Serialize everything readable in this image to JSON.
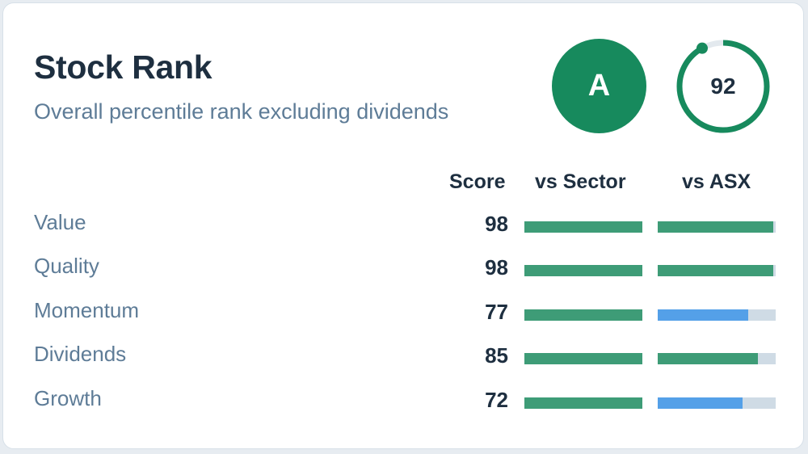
{
  "header": {
    "title": "Stock Rank",
    "subtitle": "Overall percentile rank excluding dividends"
  },
  "grade": "A",
  "overall_score": {
    "value": "92",
    "percent": 92
  },
  "columns": {
    "score": "Score",
    "sector": "vs Sector",
    "asx": "vs ASX"
  },
  "colors": {
    "green": "#3e9c77",
    "blue": "#54a0e8",
    "track": "#cfdbe5",
    "badge": "#178a5d"
  },
  "rows": [
    {
      "label": "Value",
      "score": "98",
      "sector_pct": 100,
      "asx_pct": 98,
      "sector_color": "#3e9c77",
      "asx_color": "#3e9c77"
    },
    {
      "label": "Quality",
      "score": "98",
      "sector_pct": 100,
      "asx_pct": 98,
      "sector_color": "#3e9c77",
      "asx_color": "#3e9c77"
    },
    {
      "label": "Momentum",
      "score": "77",
      "sector_pct": 100,
      "asx_pct": 77,
      "sector_color": "#3e9c77",
      "asx_color": "#54a0e8"
    },
    {
      "label": "Dividends",
      "score": "85",
      "sector_pct": 100,
      "asx_pct": 85,
      "sector_color": "#3e9c77",
      "asx_color": "#3e9c77"
    },
    {
      "label": "Growth",
      "score": "72",
      "sector_pct": 100,
      "asx_pct": 72,
      "sector_color": "#3e9c77",
      "asx_color": "#54a0e8"
    }
  ]
}
